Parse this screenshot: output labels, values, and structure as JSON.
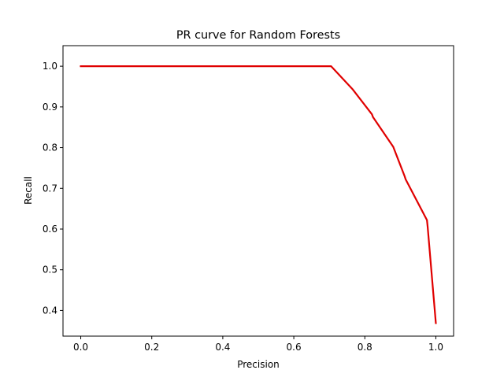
{
  "chart_data": {
    "type": "line",
    "title": "PR curve for Random Forests",
    "xlabel": "Precision",
    "ylabel": "Recall",
    "xlim": [
      -0.05,
      1.05
    ],
    "ylim": [
      0.337,
      1.0505
    ],
    "xticks": [
      0.0,
      0.2,
      0.4,
      0.6,
      0.8,
      1.0
    ],
    "xtick_labels": [
      "0.0",
      "0.2",
      "0.4",
      "0.6",
      "0.8",
      "1.0"
    ],
    "yticks": [
      0.4,
      0.5,
      0.6,
      0.7,
      0.8,
      0.9,
      1.0
    ],
    "ytick_labels": [
      "0.4",
      "0.5",
      "0.6",
      "0.7",
      "0.8",
      "0.9",
      "1.0"
    ],
    "grid": false,
    "legend": "none",
    "series": [
      {
        "color": "#e00000",
        "x": [
          0.0,
          0.705,
          0.765,
          0.82,
          0.823,
          0.88,
          0.912,
          0.915,
          0.975,
          0.977,
          1.0
        ],
        "y": [
          1.0,
          1.0,
          0.944,
          0.882,
          0.875,
          0.802,
          0.73,
          0.722,
          0.622,
          0.605,
          0.369
        ]
      }
    ]
  }
}
